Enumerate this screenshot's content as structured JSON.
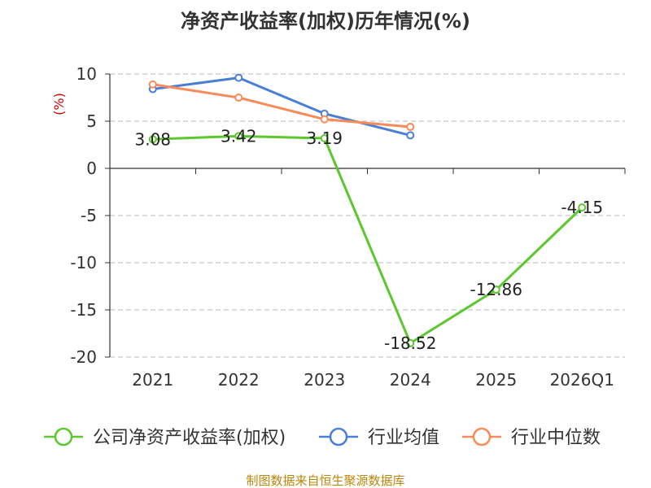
{
  "chart_data": {
    "type": "line",
    "title": "净资产收益率(加权)历年情况(%)",
    "ylabel": "(%)",
    "xlabel": "",
    "categories": [
      "2021",
      "2022",
      "2023",
      "2024",
      "2025",
      "2026Q1"
    ],
    "ylim": [
      -20,
      10
    ],
    "yticks": [
      10,
      5,
      0,
      -5,
      -10,
      -15,
      -20
    ],
    "grid": true,
    "legend_position": "bottom",
    "series": [
      {
        "name": "公司净资产收益率(加权)",
        "color": "#5cc72e",
        "values": [
          3.08,
          3.42,
          3.19,
          -18.52,
          -12.86,
          -4.15
        ],
        "labels": [
          "3.08",
          "3.42",
          "3.19",
          "-18.52",
          "-12.86",
          "-4.15"
        ]
      },
      {
        "name": "行业均值",
        "color": "#4a7fd8",
        "values": [
          8.4,
          9.6,
          5.8,
          3.5,
          null,
          null
        ]
      },
      {
        "name": "行业中位数",
        "color": "#f78c5a",
        "values": [
          8.9,
          7.5,
          5.2,
          4.4,
          null,
          null
        ]
      }
    ],
    "source": "制图数据来自恒生聚源数据库"
  }
}
